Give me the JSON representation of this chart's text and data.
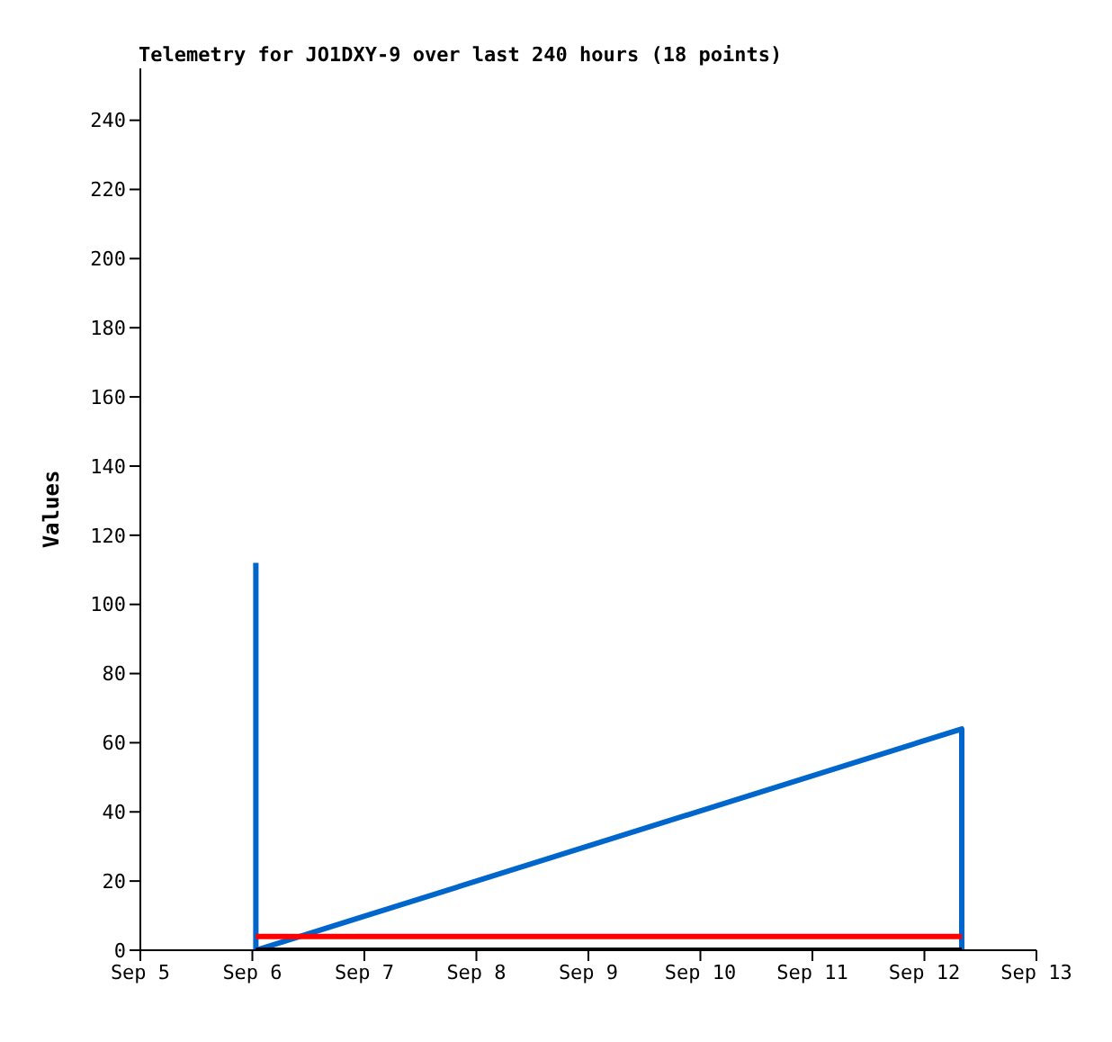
{
  "chart_data": {
    "type": "line",
    "title": "Telemetry for JO1DXY-9 over last 240 hours (18 points)",
    "ylabel": "Values",
    "series": [
      {
        "color": "#0066cc",
        "x": [
          "--09-06T00:45",
          "--09-06T00:45",
          "--09-12T08:00",
          "--09-12T08:00"
        ],
        "values": [
          112,
          0,
          64,
          0
        ]
      },
      {
        "color": "#ff0000",
        "x": [
          "--09-06T00:45",
          "--09-12T08:00"
        ],
        "values": [
          4,
          4
        ]
      },
      {
        "color": "#000000",
        "x": [
          "--09-06T00:45",
          "--09-12T08:00"
        ],
        "values": [
          0,
          0
        ]
      }
    ],
    "xlim": [
      "--09-05",
      "--09-13"
    ],
    "xticks": [
      {
        "value": "--09-05",
        "label": "Sep 5"
      },
      {
        "value": "--09-06",
        "label": "Sep 6"
      },
      {
        "value": "--09-07",
        "label": "Sep 7"
      },
      {
        "value": "--09-08",
        "label": "Sep 8"
      },
      {
        "value": "--09-09",
        "label": "Sep 9"
      },
      {
        "value": "--09-10",
        "label": "Sep 10"
      },
      {
        "value": "--09-11",
        "label": "Sep 11"
      },
      {
        "value": "--09-12",
        "label": "Sep 12"
      },
      {
        "value": "--09-13",
        "label": "Sep 13"
      }
    ],
    "ylim": [
      0,
      255
    ],
    "yticks": [
      0,
      20,
      40,
      60,
      80,
      100,
      120,
      140,
      160,
      180,
      200,
      220,
      240
    ],
    "grid": false,
    "legend": false,
    "marker": "none",
    "line_style": "solid"
  }
}
